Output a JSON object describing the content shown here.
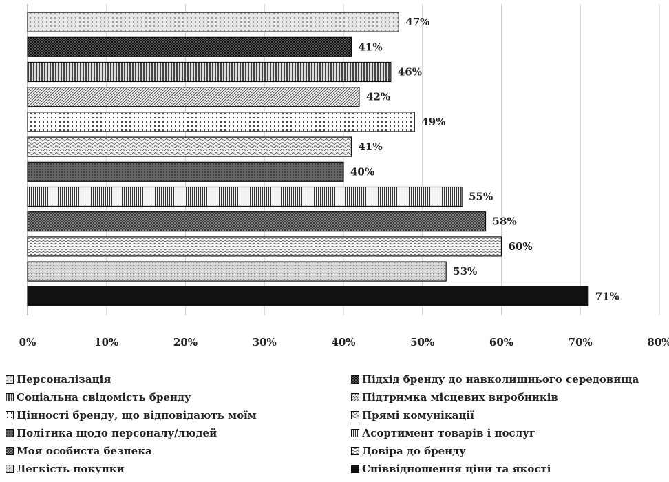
{
  "chart_data": {
    "type": "bar",
    "orientation": "horizontal",
    "x_ticks": [
      "0%",
      "10%",
      "20%",
      "30%",
      "40%",
      "50%",
      "60%",
      "70%",
      "80%"
    ],
    "xlim": [
      0,
      80
    ],
    "grid": true,
    "legend_position": "bottom",
    "categories": [
      "Персоналізація",
      "Підхід бренду до навколишнього середовища",
      "Соціальна свідомість бренду",
      "Підтримка місцевих виробників",
      "Цінності бренду, що відповідають моїм",
      "Прямі комунікації",
      "Політика щодо персоналу/людей",
      "Асортимент товарів і послуг",
      "Моя особиста безпека",
      "Довіра до бренду",
      "Легкість покупки",
      "Співвідношення ціни та якості"
    ],
    "values": [
      47,
      41,
      46,
      42,
      49,
      41,
      40,
      55,
      58,
      60,
      53,
      71
    ],
    "value_labels": [
      "47%",
      "41%",
      "46%",
      "42%",
      "49%",
      "41%",
      "40%",
      "55%",
      "58%",
      "60%",
      "53%",
      "71%"
    ],
    "patterns": [
      "light-dots",
      "dark-check",
      "vertical-lines",
      "diagonal",
      "white-dots",
      "waves-light",
      "dark-dots",
      "fine-vertical",
      "cross-hatch",
      "zigzag",
      "light-stipple",
      "solid-black"
    ],
    "legend": [
      "Персоналізація",
      "Підхід бренду до навколишнього середовища",
      "Соціальна свідомість бренду",
      "Підтримка місцевих виробників",
      "Цінності бренду, що відповідають моїм",
      "Прямі комунікації",
      "Політика щодо персоналу/людей",
      "Асортимент товарів і послуг",
      "Моя особиста безпека",
      "Довіра до бренду",
      "Легкість покупки",
      "Співвідношення ціни та якості"
    ]
  }
}
